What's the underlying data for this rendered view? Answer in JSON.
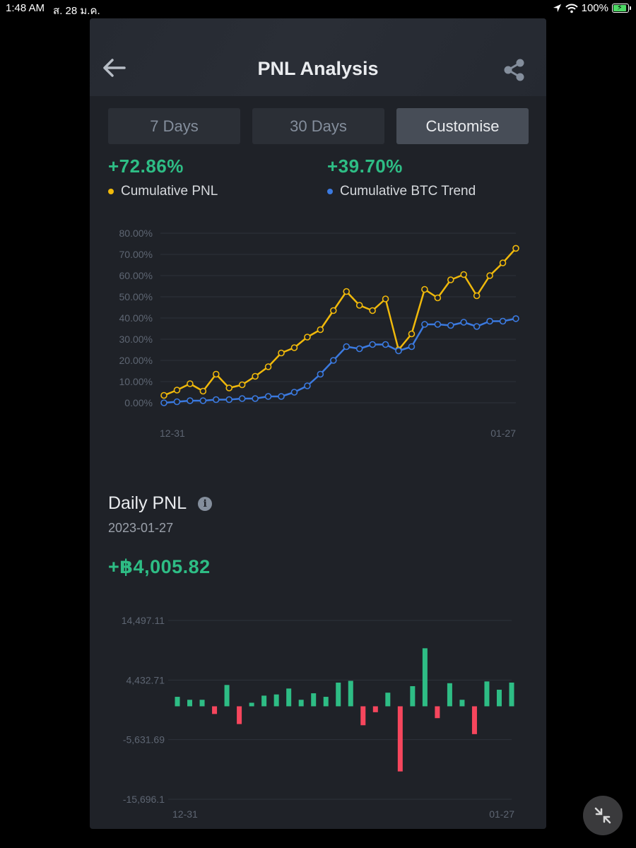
{
  "status_bar": {
    "time": "1:48 AM",
    "date": "ส. 28 ม.ค.",
    "battery": "100%"
  },
  "header": {
    "title": "PNL Analysis"
  },
  "tabs": [
    {
      "label": "7 Days",
      "active": false
    },
    {
      "label": "30 Days",
      "active": false
    },
    {
      "label": "Customise",
      "active": true
    }
  ],
  "summary": {
    "pnl": {
      "value": "+72.86%",
      "label": "Cumulative PNL",
      "color": "#f0b90b"
    },
    "btc": {
      "value": "+39.70%",
      "label": "Cumulative BTC Trend",
      "color": "#3b7ae0"
    }
  },
  "daily": {
    "title": "Daily PNL",
    "date": "2023-01-27",
    "value": "+฿4,005.82"
  },
  "colors": {
    "up": "#2ebd85",
    "down": "#f6465d",
    "grid": "#2e323a",
    "axis_text": "#5e6673"
  },
  "chart_data": [
    {
      "type": "line",
      "x_start_label": "12-31",
      "x_end_label": "01-27",
      "y_ticks": [
        "80.00%",
        "70.00%",
        "60.00%",
        "50.00%",
        "40.00%",
        "30.00%",
        "20.00%",
        "10.00%",
        "0.00%"
      ],
      "ylim": [
        0,
        80
      ],
      "grid": true,
      "series": [
        {
          "name": "Cumulative PNL",
          "color": "#f0b90b",
          "values": [
            3.5,
            6,
            9,
            5.5,
            13.5,
            7,
            8.5,
            12.5,
            17,
            23.5,
            26,
            31,
            34.5,
            43.5,
            52.5,
            46,
            43.5,
            49,
            25,
            32.5,
            53.5,
            49.5,
            58,
            60.5,
            50.5,
            60,
            66,
            72.86
          ]
        },
        {
          "name": "Cumulative BTC Trend",
          "color": "#3b7ae0",
          "values": [
            0,
            0.5,
            1,
            1,
            1.5,
            1.5,
            2,
            2,
            3,
            3,
            5,
            8,
            13.5,
            20,
            26.5,
            25.5,
            27.5,
            27.5,
            24.5,
            26.5,
            37,
            37,
            36.5,
            38,
            36,
            38.5,
            38.5,
            39.7
          ]
        }
      ]
    },
    {
      "type": "bar",
      "x_start_label": "12-31",
      "x_end_label": "01-27",
      "y_ticks": [
        "14,497.11",
        "4,432.71",
        "-5,631.69",
        "-15,696.1"
      ],
      "ylim": [
        -15696.1,
        14497.11
      ],
      "grid": true,
      "values": [
        1600,
        1100,
        1100,
        -1300,
        3600,
        -3000,
        600,
        1800,
        2000,
        3000,
        1100,
        2200,
        1600,
        4000,
        4300,
        -3200,
        -1000,
        2300,
        -11000,
        3400,
        9800,
        -2000,
        3900,
        1100,
        -4700,
        4200,
        2800,
        4005.82
      ]
    }
  ]
}
